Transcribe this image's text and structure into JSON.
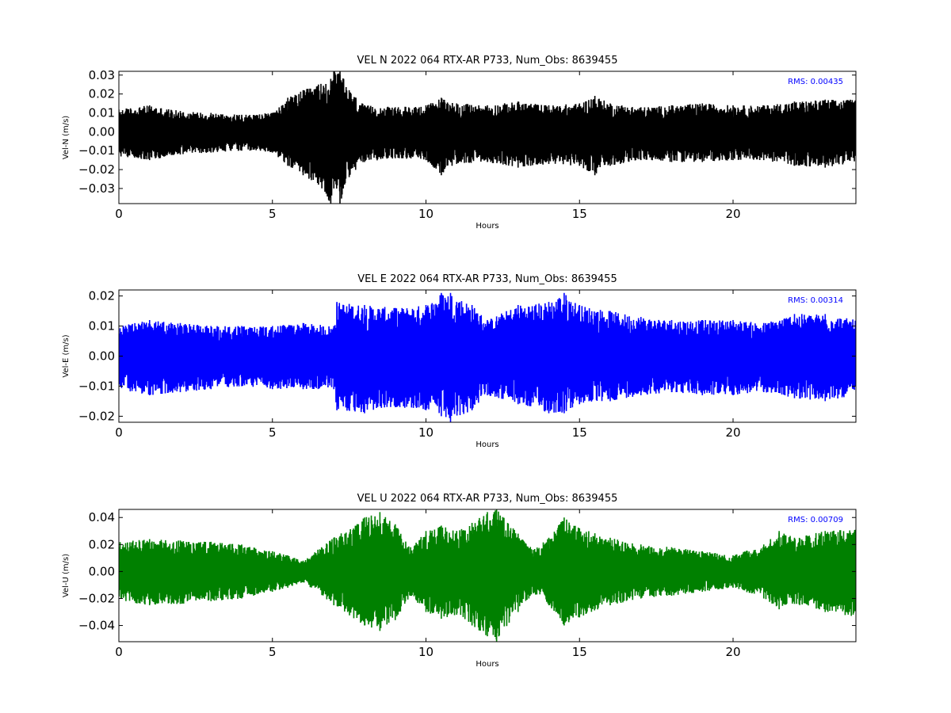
{
  "chart_data": [
    {
      "type": "line",
      "title": "VEL N 2022 064 RTX-AR  P733, Num_Obs: 8639455",
      "xlabel": "Hours",
      "ylabel": "Vel-N (m/s)",
      "xlim": [
        0,
        24
      ],
      "ylim": [
        -0.038,
        0.032
      ],
      "xticks": [
        0,
        5,
        10,
        15,
        20
      ],
      "xtick_labels": [
        "0",
        "5",
        "10",
        "15",
        "20"
      ],
      "yticks": [
        -0.03,
        -0.02,
        -0.01,
        0.0,
        0.01,
        0.02,
        0.03
      ],
      "ytick_labels": [
        "−0.03",
        "−0.02",
        "−0.01",
        "0.00",
        "0.01",
        "0.02",
        "0.03"
      ],
      "color": "#000000",
      "rms_text": "RMS:  0.00435",
      "rms_color": "#0000ff",
      "grid": false,
      "series": [
        {
          "x": [
            0,
            1,
            2,
            3,
            4,
            5,
            5.5,
            6,
            6.5,
            6.9,
            7,
            7.2,
            7.5,
            8,
            9,
            10,
            10.5,
            11,
            12,
            13,
            14,
            15,
            15.5,
            16,
            17,
            18,
            19,
            20,
            21,
            22,
            23,
            24
          ],
          "upper": [
            0.012,
            0.014,
            0.011,
            0.01,
            0.009,
            0.01,
            0.018,
            0.022,
            0.025,
            0.028,
            0.032,
            0.032,
            0.022,
            0.014,
            0.013,
            0.014,
            0.018,
            0.015,
            0.014,
            0.016,
            0.014,
            0.015,
            0.019,
            0.015,
            0.013,
            0.014,
            0.015,
            0.014,
            0.014,
            0.016,
            0.017,
            0.017
          ],
          "lower": [
            -0.013,
            -0.015,
            -0.012,
            -0.011,
            -0.01,
            -0.011,
            -0.018,
            -0.023,
            -0.028,
            -0.038,
            -0.03,
            -0.038,
            -0.024,
            -0.016,
            -0.014,
            -0.015,
            -0.023,
            -0.017,
            -0.016,
            -0.019,
            -0.017,
            -0.018,
            -0.023,
            -0.018,
            -0.015,
            -0.016,
            -0.016,
            -0.015,
            -0.015,
            -0.018,
            -0.019,
            -0.016
          ]
        }
      ]
    },
    {
      "type": "line",
      "title": "VEL E 2022 064 RTX-AR  P733, Num_Obs: 8639455",
      "xlabel": "Hours",
      "ylabel": "Vel-E (m/s)",
      "xlim": [
        0,
        24
      ],
      "ylim": [
        -0.022,
        0.022
      ],
      "xticks": [
        0,
        5,
        10,
        15,
        20
      ],
      "xtick_labels": [
        "0",
        "5",
        "10",
        "15",
        "20"
      ],
      "yticks": [
        -0.02,
        -0.01,
        0.0,
        0.01,
        0.02
      ],
      "ytick_labels": [
        "−0.02",
        "−0.01",
        "0.00",
        "0.01",
        "0.02"
      ],
      "color": "#0000ff",
      "rms_text": "RMS:  0.00314",
      "rms_color": "#0000ff",
      "grid": false,
      "series": [
        {
          "x": [
            0,
            1,
            2,
            3,
            4,
            5,
            6,
            7,
            7.1,
            8,
            9,
            10,
            10.5,
            10.8,
            11.5,
            12,
            13,
            14,
            14.5,
            15,
            16,
            17,
            18,
            19,
            20,
            21,
            22,
            23,
            24
          ],
          "upper": [
            0.01,
            0.012,
            0.011,
            0.01,
            0.01,
            0.01,
            0.011,
            0.01,
            0.018,
            0.017,
            0.016,
            0.017,
            0.021,
            0.021,
            0.017,
            0.012,
            0.017,
            0.018,
            0.021,
            0.017,
            0.015,
            0.013,
            0.012,
            0.012,
            0.012,
            0.011,
            0.014,
            0.014,
            0.012
          ],
          "lower": [
            -0.011,
            -0.013,
            -0.012,
            -0.011,
            -0.01,
            -0.011,
            -0.011,
            -0.011,
            -0.018,
            -0.019,
            -0.017,
            -0.018,
            -0.02,
            -0.022,
            -0.018,
            -0.013,
            -0.016,
            -0.019,
            -0.019,
            -0.016,
            -0.015,
            -0.013,
            -0.012,
            -0.013,
            -0.013,
            -0.012,
            -0.014,
            -0.015,
            -0.013
          ]
        }
      ]
    },
    {
      "type": "line",
      "title": "VEL U 2022 064 RTX-AR  P733, Num_Obs: 8639455",
      "xlabel": "Hours",
      "ylabel": "Vel-U (m/s)",
      "xlim": [
        0,
        24
      ],
      "ylim": [
        -0.052,
        0.046
      ],
      "xticks": [
        0,
        5,
        10,
        15,
        20
      ],
      "xtick_labels": [
        "0",
        "5",
        "10",
        "15",
        "20"
      ],
      "yticks": [
        -0.04,
        -0.02,
        0.0,
        0.02,
        0.04
      ],
      "ytick_labels": [
        "−0.04",
        "−0.02",
        "0.00",
        "0.02",
        "0.04"
      ],
      "color": "#008000",
      "rms_text": "RMS:  0.00709",
      "rms_color": "#0000ff",
      "grid": false,
      "series": [
        {
          "x": [
            0,
            1,
            2,
            3,
            4,
            5,
            5.5,
            6,
            7,
            8,
            8.5,
            9,
            9.5,
            10,
            10.5,
            11,
            11.5,
            12,
            12.3,
            13,
            13.5,
            14,
            14.5,
            15,
            16,
            17,
            18,
            19,
            20,
            21,
            21.5,
            22,
            23,
            24
          ],
          "upper": [
            0.022,
            0.024,
            0.023,
            0.022,
            0.02,
            0.015,
            0.012,
            0.008,
            0.025,
            0.04,
            0.044,
            0.035,
            0.018,
            0.03,
            0.034,
            0.03,
            0.036,
            0.044,
            0.046,
            0.028,
            0.016,
            0.025,
            0.04,
            0.032,
            0.025,
            0.02,
            0.018,
            0.015,
            0.012,
            0.02,
            0.03,
            0.025,
            0.03,
            0.032
          ],
          "lower": [
            -0.022,
            -0.025,
            -0.024,
            -0.022,
            -0.02,
            -0.015,
            -0.012,
            -0.008,
            -0.025,
            -0.04,
            -0.044,
            -0.036,
            -0.018,
            -0.03,
            -0.035,
            -0.032,
            -0.04,
            -0.048,
            -0.052,
            -0.03,
            -0.016,
            -0.025,
            -0.04,
            -0.034,
            -0.025,
            -0.02,
            -0.018,
            -0.015,
            -0.012,
            -0.02,
            -0.028,
            -0.024,
            -0.03,
            -0.034
          ]
        }
      ]
    }
  ]
}
